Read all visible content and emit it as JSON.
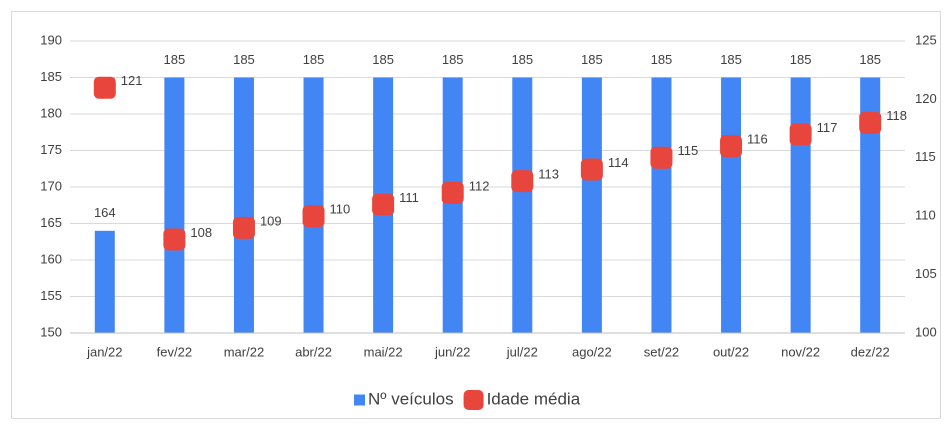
{
  "chart_data": {
    "type": "bar_marker_combo",
    "categories": [
      "jan/22",
      "fev/22",
      "mar/22",
      "abr/22",
      "mai/22",
      "jun/22",
      "jul/22",
      "ago/22",
      "set/22",
      "out/22",
      "nov/22",
      "dez/22"
    ],
    "series": [
      {
        "name": "Nº veículos",
        "color": "#4285f4",
        "values": [
          164,
          185,
          185,
          185,
          185,
          185,
          185,
          185,
          185,
          185,
          185,
          185
        ]
      },
      {
        "name": "Idade média",
        "color": "#e8463c",
        "axis": "y2",
        "values": [
          121,
          108,
          109,
          110,
          111,
          112,
          113,
          114,
          115,
          116,
          117,
          118
        ]
      }
    ],
    "ylim": [
      150,
      190
    ],
    "yticks": [
      150,
      155,
      160,
      165,
      170,
      175,
      180,
      185,
      190
    ],
    "y2lim": [
      100,
      125
    ],
    "y2ticks": [
      100,
      105,
      110,
      115,
      120,
      125
    ],
    "grid": true,
    "legend": "bottom"
  }
}
